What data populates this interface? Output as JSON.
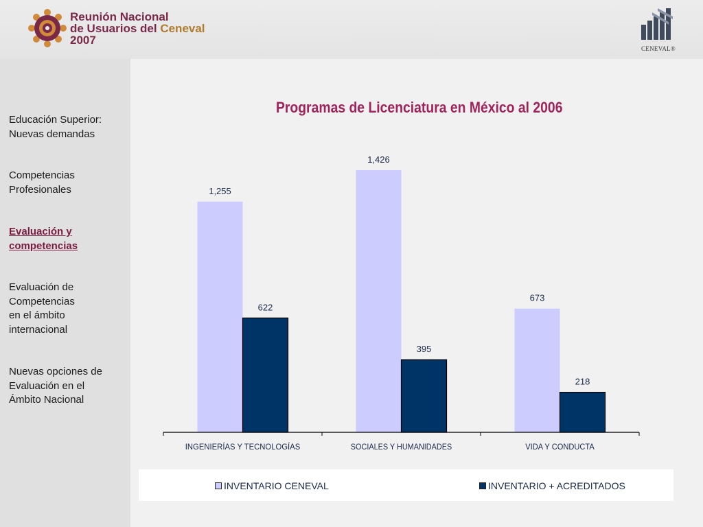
{
  "header": {
    "logo_line1": "Reunión Nacional",
    "logo_line2_a": "de Usuarios del ",
    "logo_line2_b": "Ceneval",
    "logo_line3": "2007",
    "ceneval_label": "CENEVAL®"
  },
  "sidebar": {
    "items": [
      {
        "label": "Educación Superior:\nNuevas demandas",
        "active": false
      },
      {
        "label": "Competencias\nProfesionales ",
        "active": false
      },
      {
        "label": "Evaluación y \ncompetencias",
        "active": true
      },
      {
        "label": "Evaluación de\nCompetencias\nen el ámbito\ninternacional",
        "active": false
      },
      {
        "label": "Nuevas opciones de\nEvaluación en el\nÁmbito Nacional",
        "active": false
      }
    ]
  },
  "colors": {
    "series1": "#ccccff",
    "series2": "#003366",
    "title": "#a0245a"
  },
  "chart_data": {
    "type": "bar",
    "title": "Programas de Licenciatura en México al 2006",
    "categories": [
      "INGENIERÍAS Y TECNOLOGÍAS",
      "SOCIALES Y HUMANIDADES",
      "VIDA Y CONDUCTA"
    ],
    "series": [
      {
        "name": "INVENTARIO CENEVAL",
        "values": [
          1255,
          1426,
          673
        ],
        "labels": [
          "1,255",
          "1,426",
          "673"
        ]
      },
      {
        "name": "INVENTARIO + ACREDITADOS",
        "values": [
          622,
          395,
          218
        ],
        "labels": [
          "622",
          "395",
          "218"
        ]
      }
    ],
    "ylim": [
      0,
      1600
    ],
    "grid": false,
    "legend_position": "bottom"
  }
}
